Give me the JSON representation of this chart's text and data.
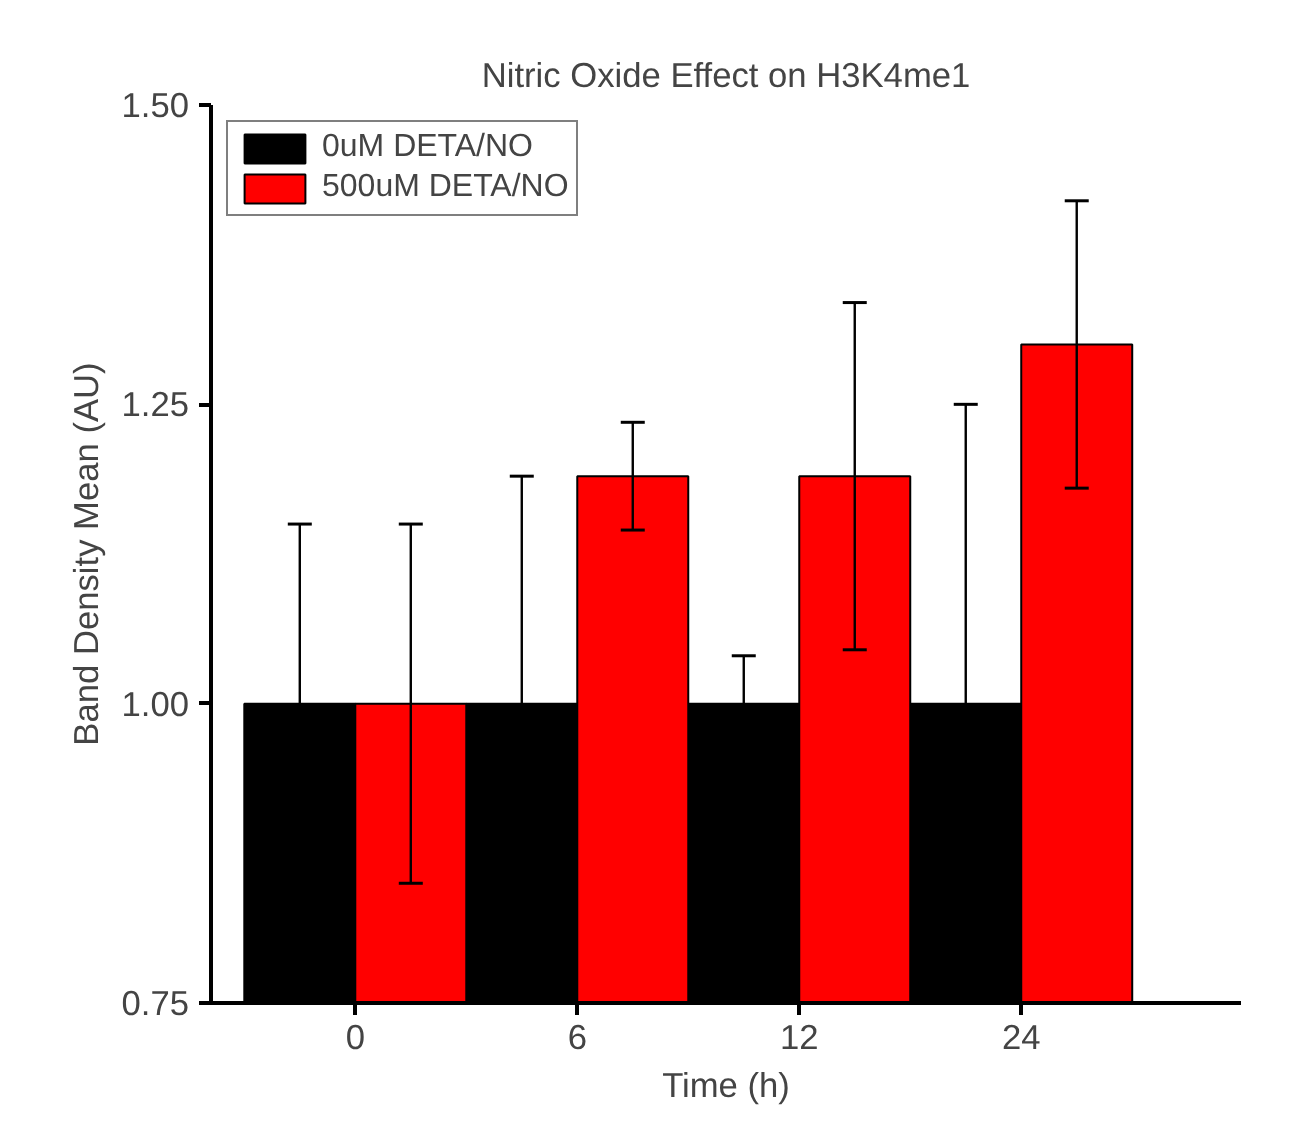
{
  "chart_data": {
    "type": "bar",
    "title": "Nitric Oxide Effect on H3K4me1",
    "xlabel": "Time (h)",
    "ylabel": "Band Density Mean (AU)",
    "categories": [
      "0",
      "6",
      "12",
      "24"
    ],
    "series": [
      {
        "name": "0uM DETA/NO",
        "color": "#000000",
        "values": [
          1.0,
          1.0,
          1.0,
          1.0
        ],
        "errors": [
          0.15,
          0.19,
          0.04,
          0.25
        ]
      },
      {
        "name": "500uM DETA/NO",
        "color": "#ff0000",
        "values": [
          1.0,
          1.19,
          1.19,
          1.3
        ],
        "errors": [
          0.15,
          0.045,
          0.145,
          0.12
        ]
      }
    ],
    "ylim": [
      0.75,
      1.5
    ],
    "yticks": [
      {
        "value": 0.75,
        "label": "0.75"
      },
      {
        "value": 1.0,
        "label": "1.00"
      },
      {
        "value": 1.25,
        "label": "1.25"
      },
      {
        "value": 1.5,
        "label": "1.50"
      }
    ],
    "grid": false,
    "legend": "top left"
  }
}
